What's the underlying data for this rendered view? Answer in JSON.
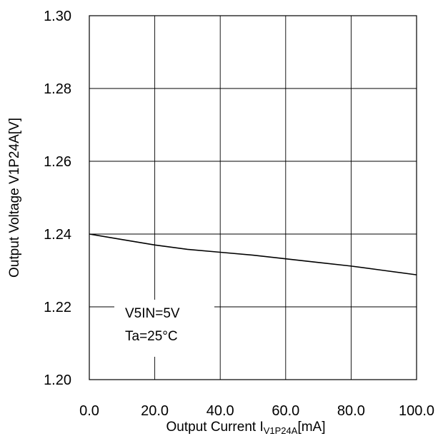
{
  "chart_data": {
    "type": "line",
    "xlabel_main": "Output Current I",
    "xlabel_sub": "V1P24A",
    "xlabel_unit": "[mA]",
    "ylabel": "Output Voltage V1P24A[V]",
    "xlim": [
      0,
      100
    ],
    "ylim": [
      1.2,
      1.3
    ],
    "x_ticks": [
      0,
      20,
      40,
      60,
      80,
      100
    ],
    "x_tick_labels": [
      "0.0",
      "20.0",
      "40.0",
      "60.0",
      "80.0",
      "100.0"
    ],
    "y_ticks": [
      1.2,
      1.22,
      1.24,
      1.26,
      1.28,
      1.3
    ],
    "y_tick_labels": [
      "1.20",
      "1.22",
      "1.24",
      "1.26",
      "1.28",
      "1.30"
    ],
    "grid": true,
    "annotations": [
      "V5IN=5V",
      "Ta=25°C"
    ],
    "series": [
      {
        "x": [
          0,
          10,
          20,
          30,
          40,
          50,
          60,
          70,
          80,
          90,
          100
        ],
        "y": [
          1.24,
          1.2385,
          1.237,
          1.2358,
          1.235,
          1.2342,
          1.2332,
          1.2322,
          1.2312,
          1.23,
          1.2288
        ],
        "color": "#000000"
      }
    ]
  }
}
